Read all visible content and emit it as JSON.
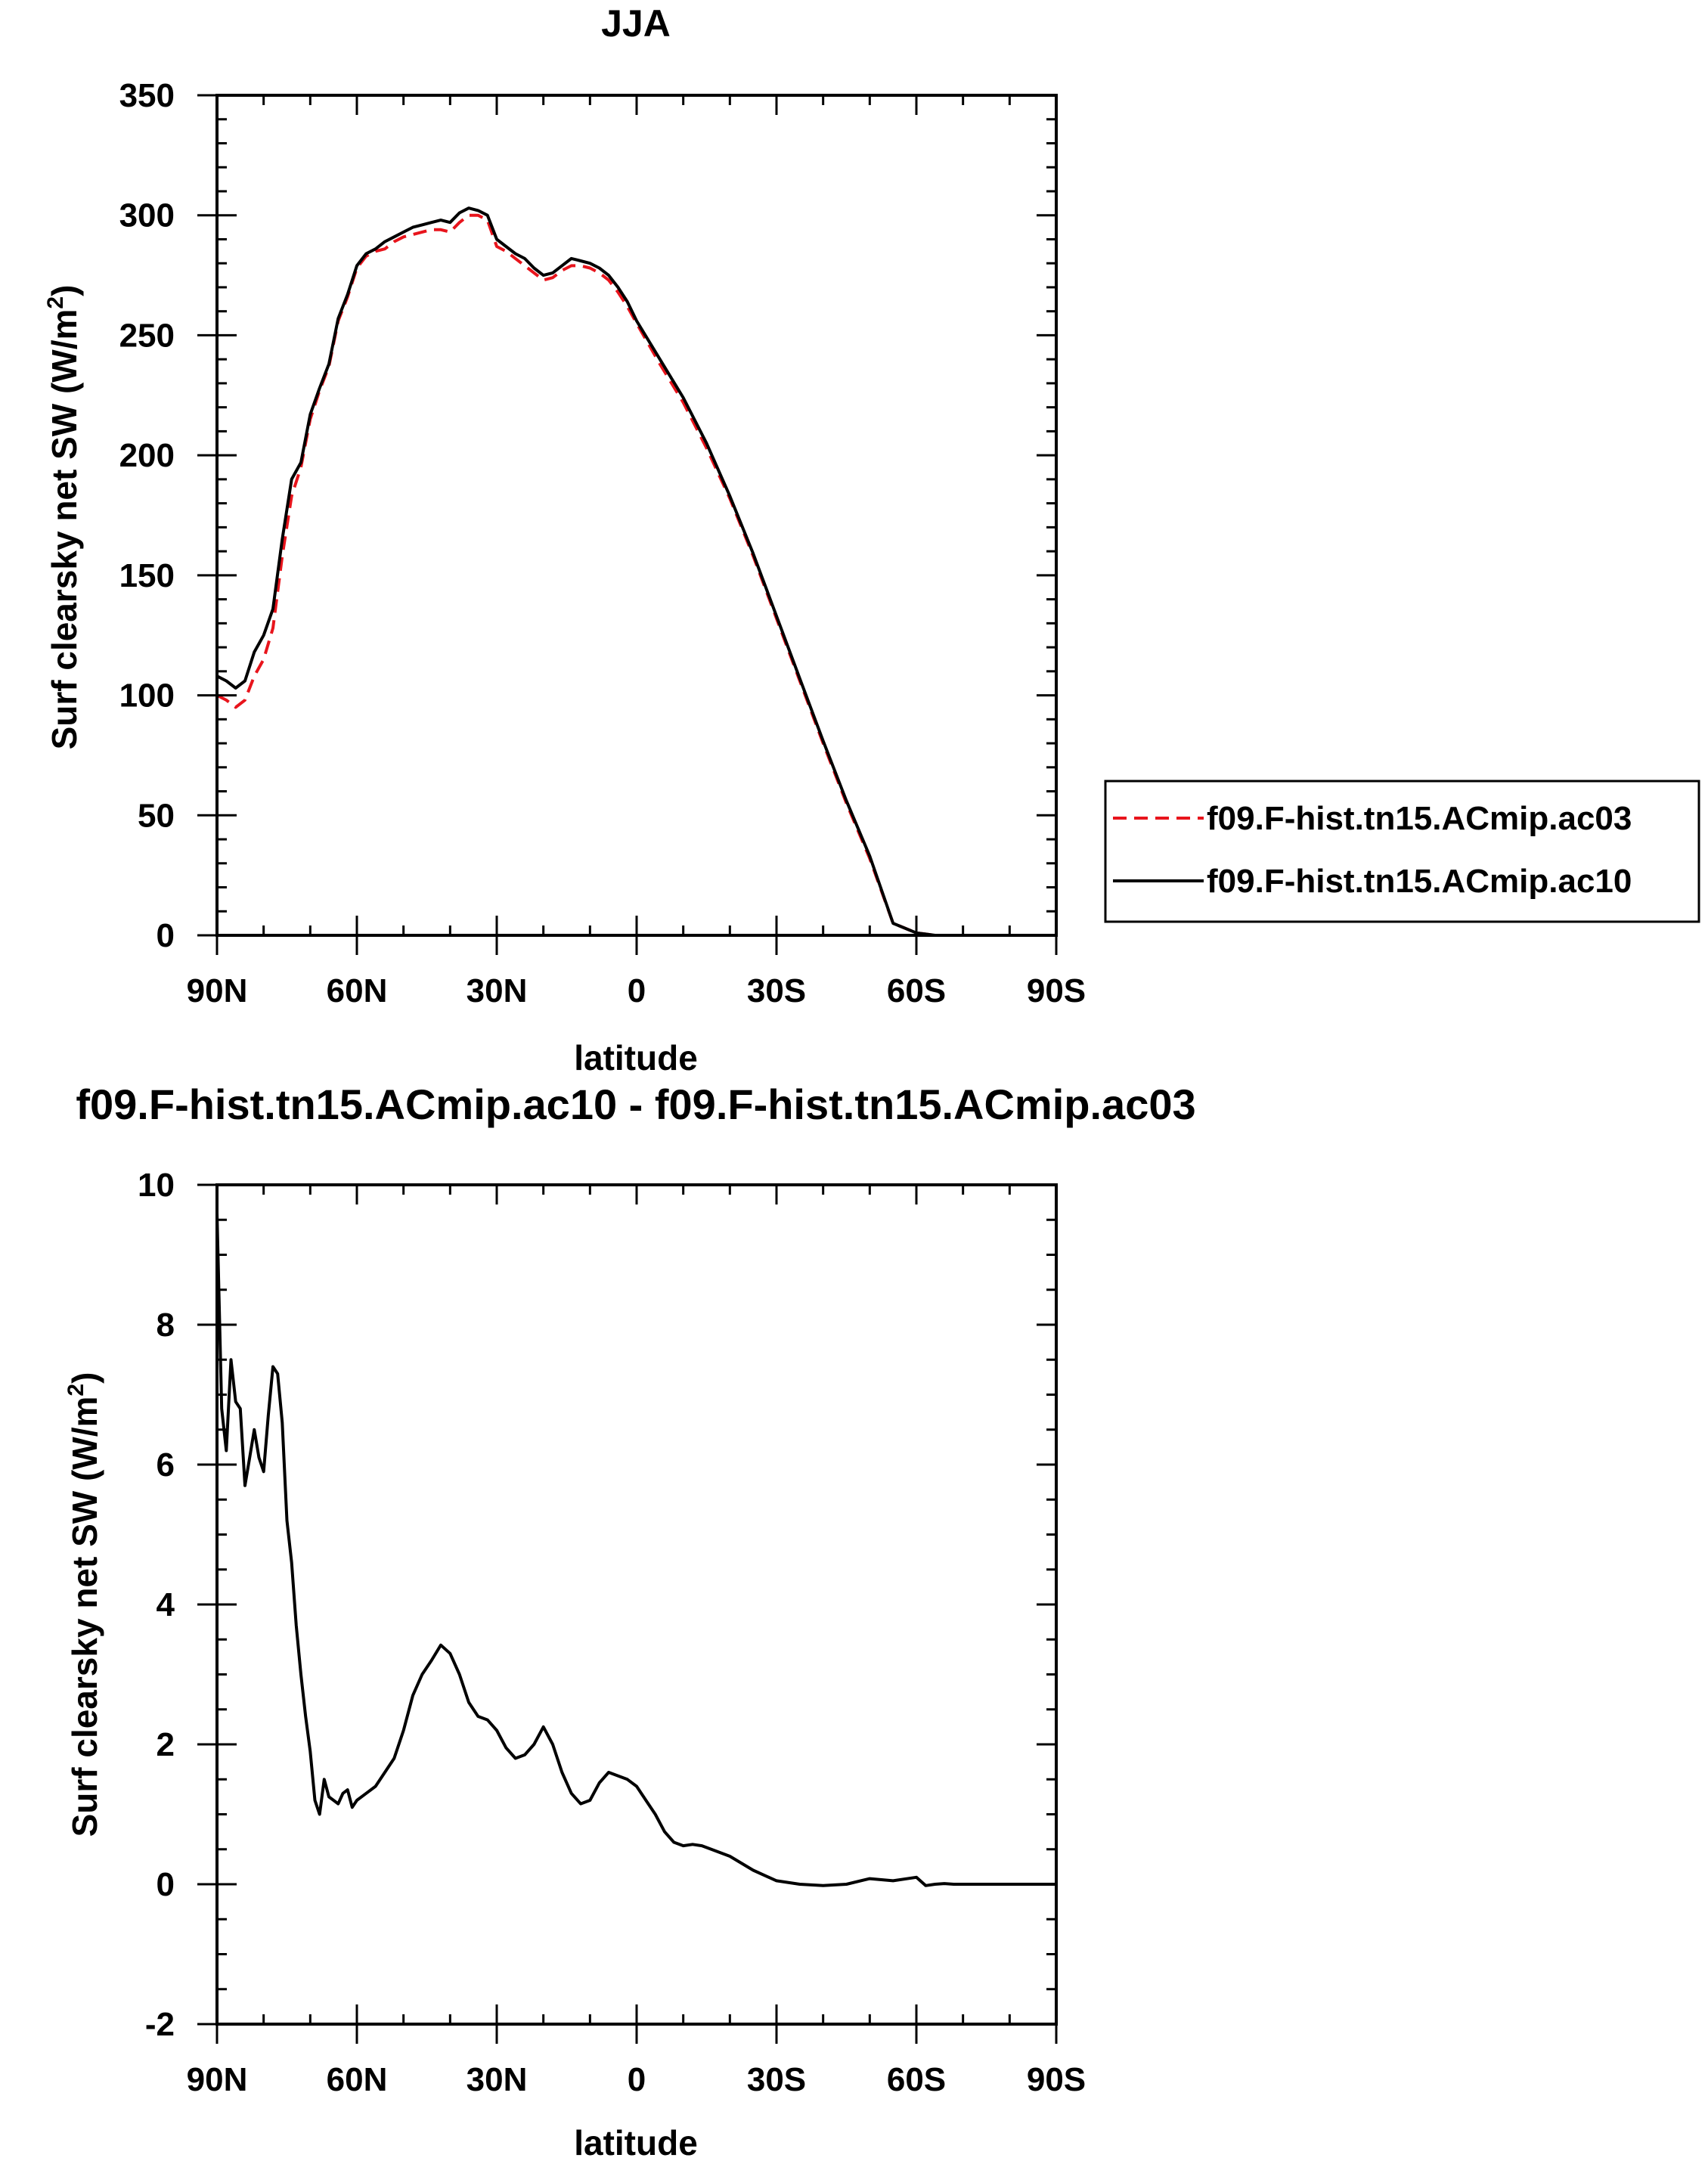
{
  "chart_data": [
    {
      "type": "line",
      "title": "JJA",
      "xlabel": "latitude",
      "ylabel": "Surf clearsky net SW (W/m",
      "ylabel_sup": "2",
      "ylabel_end": ")",
      "xlim": [
        90,
        -90
      ],
      "ylim": [
        0,
        350
      ],
      "x_ticks": [
        90,
        60,
        30,
        0,
        -30,
        -60,
        -90
      ],
      "x_tick_labels": [
        "90N",
        "60N",
        "30N",
        "0",
        "30S",
        "60S",
        "90S"
      ],
      "y_ticks": [
        0,
        50,
        100,
        150,
        200,
        250,
        300,
        350
      ],
      "y_tick_labels": [
        "0",
        "50",
        "100",
        "150",
        "200",
        "250",
        "300",
        "350"
      ],
      "legend": {
        "placement": "right"
      },
      "series": [
        {
          "name": "f09.F-hist.tn15.ACmip.ac03",
          "color": "#e8141c",
          "dash": "dashed",
          "x": [
            90,
            88,
            86,
            84,
            82,
            80,
            78,
            76,
            74,
            72,
            70,
            68,
            66,
            64,
            62,
            60,
            58,
            56,
            54,
            52,
            50,
            48,
            46,
            44,
            42,
            40,
            38,
            36,
            34,
            32,
            30,
            28,
            26,
            24,
            22,
            20,
            18,
            16,
            14,
            12,
            10,
            8,
            6,
            4,
            2,
            0,
            -5,
            -10,
            -15,
            -20,
            -25,
            -30,
            -35,
            -40,
            -45,
            -50,
            -55,
            -60,
            -62,
            -64,
            -66,
            -68,
            -70,
            -75,
            -80,
            -85,
            -90
          ],
          "values": [
            100,
            98,
            95,
            98,
            108,
            115,
            128,
            158,
            183,
            195,
            215,
            227,
            237,
            256,
            266,
            278,
            283,
            285,
            286,
            289,
            291,
            292,
            293,
            294,
            294,
            293,
            297,
            300,
            300,
            298,
            287,
            285,
            282,
            279,
            276,
            273,
            274,
            277,
            279,
            279,
            278,
            276,
            273,
            268,
            262,
            255,
            238,
            222,
            203,
            182,
            158,
            132,
            106,
            80,
            55,
            32,
            5,
            1,
            0.5,
            0,
            0,
            0,
            0,
            0,
            0,
            0,
            0
          ]
        },
        {
          "name": "f09.F-hist.tn15.ACmip.ac10",
          "color": "#000000",
          "dash": "solid",
          "x": [
            90,
            88,
            86,
            84,
            82,
            80,
            78,
            76,
            74,
            72,
            70,
            68,
            66,
            64,
            62,
            60,
            58,
            56,
            54,
            52,
            50,
            48,
            46,
            44,
            42,
            40,
            38,
            36,
            34,
            32,
            30,
            28,
            26,
            24,
            22,
            20,
            18,
            16,
            14,
            12,
            10,
            8,
            6,
            4,
            2,
            0,
            -5,
            -10,
            -15,
            -20,
            -25,
            -30,
            -35,
            -40,
            -45,
            -50,
            -55,
            -60,
            -62,
            -64,
            -66,
            -68,
            -70,
            -75,
            -80,
            -85,
            -90
          ],
          "values": [
            108,
            106,
            103,
            106,
            118,
            125,
            136,
            165,
            190,
            197,
            217,
            228,
            238,
            257,
            267,
            279,
            284,
            286,
            289,
            291,
            293,
            295,
            296,
            297,
            298,
            297,
            301,
            303,
            302,
            300,
            290,
            287,
            284,
            282,
            278,
            275,
            276,
            279,
            282,
            281,
            280,
            278,
            275,
            270,
            264,
            256,
            240,
            224,
            205,
            183,
            159,
            133,
            107,
            81,
            56,
            33,
            5,
            1,
            0.5,
            0,
            0,
            0,
            0,
            0,
            0,
            0,
            0
          ]
        }
      ]
    },
    {
      "type": "line",
      "title": "f09.F-hist.tn15.ACmip.ac10 - f09.F-hist.tn15.ACmip.ac03",
      "xlabel": "latitude",
      "ylabel": "Surf clearsky net SW (W/m",
      "ylabel_sup": "2",
      "ylabel_end": ")",
      "xlim": [
        90,
        -90
      ],
      "ylim": [
        -2,
        10
      ],
      "x_ticks": [
        90,
        60,
        30,
        0,
        -30,
        -60,
        -90
      ],
      "x_tick_labels": [
        "90N",
        "60N",
        "30N",
        "0",
        "30S",
        "60S",
        "90S"
      ],
      "y_ticks": [
        -2,
        0,
        2,
        4,
        6,
        8,
        10
      ],
      "y_tick_labels": [
        "-2",
        "0",
        "2",
        "4",
        "6",
        "8",
        "10"
      ],
      "series": [
        {
          "name": "f09.F-hist.tn15.ACmip.ac10 - f09.F-hist.tn15.ACmip.ac03",
          "color": "#000000",
          "dash": "solid",
          "x": [
            90,
            89,
            88,
            87,
            86,
            85,
            84,
            83,
            82,
            81,
            80,
            79,
            78,
            77,
            76,
            75,
            74,
            73,
            72,
            71,
            70,
            69,
            68,
            67,
            66,
            65,
            64,
            63,
            62,
            61,
            60,
            58,
            56,
            54,
            52,
            50,
            48,
            46,
            44,
            42,
            40,
            38,
            36,
            34,
            32,
            30,
            28,
            26,
            24,
            22,
            20,
            18,
            16,
            14,
            12,
            10,
            8,
            6,
            4,
            2,
            0,
            -2,
            -4,
            -6,
            -8,
            -10,
            -12,
            -14,
            -16,
            -18,
            -20,
            -25,
            -30,
            -35,
            -40,
            -45,
            -50,
            -55,
            -60,
            -62,
            -64,
            -66,
            -68,
            -70,
            -75,
            -80,
            -85,
            -90
          ],
          "values": [
            9.6,
            6.8,
            6.2,
            7.5,
            6.9,
            6.8,
            5.7,
            6.1,
            6.5,
            6.1,
            5.9,
            6.7,
            7.4,
            7.3,
            6.6,
            5.2,
            4.6,
            3.7,
            3.0,
            2.4,
            1.9,
            1.2,
            1.0,
            1.5,
            1.25,
            1.2,
            1.15,
            1.3,
            1.35,
            1.1,
            1.2,
            1.3,
            1.4,
            1.6,
            1.8,
            2.2,
            2.7,
            3.0,
            3.2,
            3.42,
            3.3,
            3.0,
            2.6,
            2.4,
            2.35,
            2.2,
            1.95,
            1.8,
            1.85,
            2.0,
            2.25,
            2.0,
            1.6,
            1.3,
            1.15,
            1.2,
            1.45,
            1.6,
            1.55,
            1.5,
            1.4,
            1.2,
            1.0,
            0.75,
            0.6,
            0.55,
            0.57,
            0.55,
            0.5,
            0.45,
            0.4,
            0.2,
            0.05,
            0.0,
            -0.02,
            0.0,
            0.08,
            0.05,
            0.1,
            -0.02,
            0.0,
            0.01,
            0.0,
            0.0,
            0.0,
            0.0,
            0.0,
            0.0
          ]
        }
      ]
    }
  ]
}
